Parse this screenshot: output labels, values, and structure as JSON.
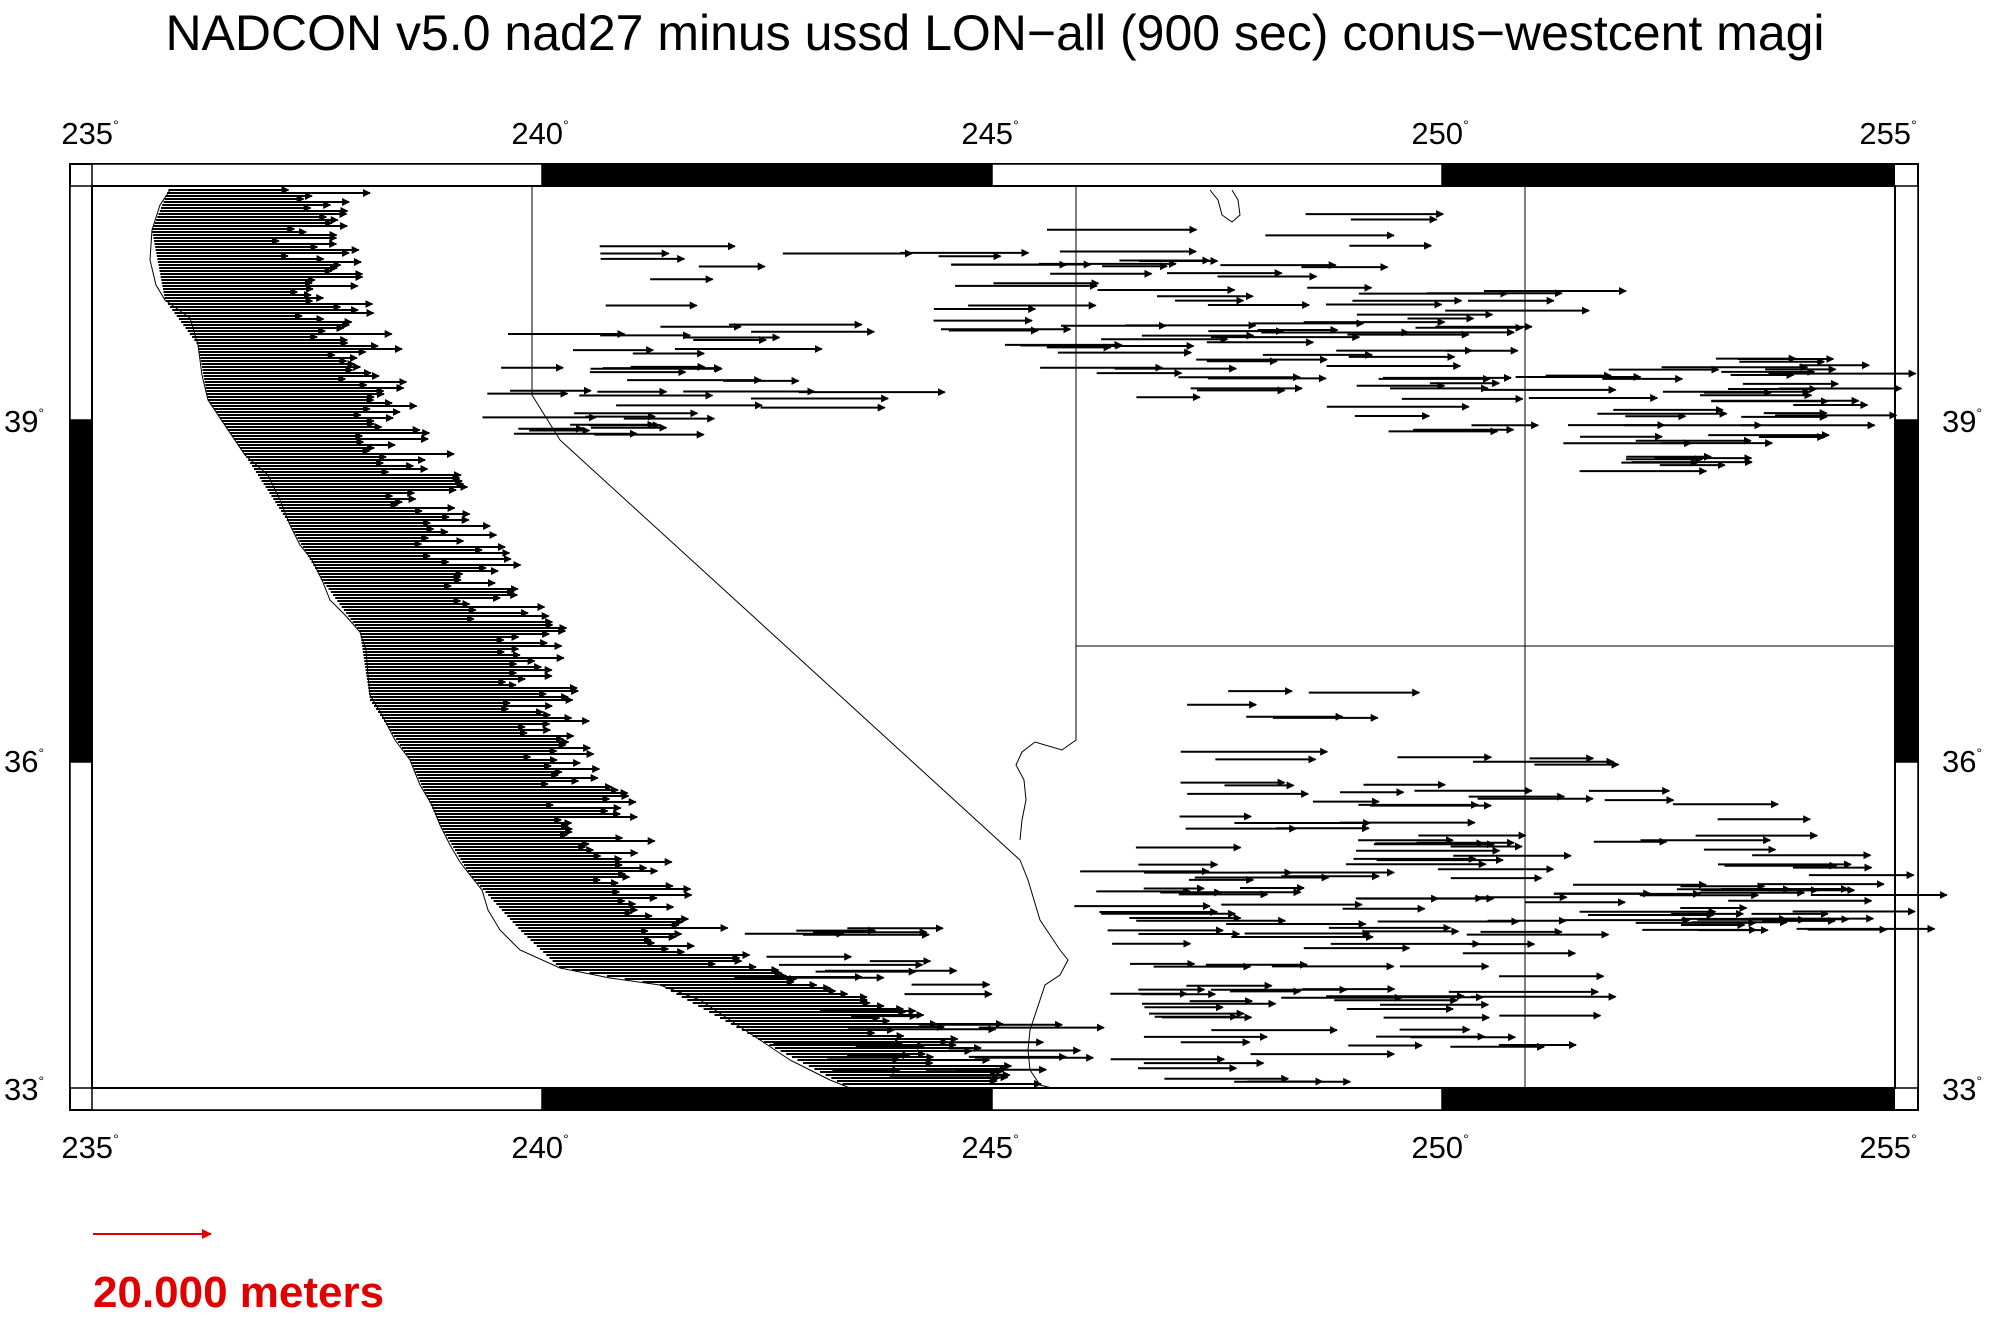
{
  "title": "NADCON v5.0 nad27 minus ussd LON−all (900 sec) conus−westcent magi",
  "map": {
    "lon_range": [
      234.75,
      255.25
    ],
    "lat_range": [
      32.9,
      41.2
    ],
    "lon_ticks": [
      "235",
      "240",
      "245",
      "250",
      "255"
    ],
    "lat_ticks": [
      "33",
      "36",
      "39"
    ],
    "degree_symbol": "°"
  },
  "legend": {
    "scale_value_m": 20.0,
    "label": "20.000 meters",
    "color": "#e00000"
  },
  "colors": {
    "arrows": "#000000",
    "borders": "#000000",
    "frame_dark": "#000000",
    "frame_light": "#ffffff"
  }
}
